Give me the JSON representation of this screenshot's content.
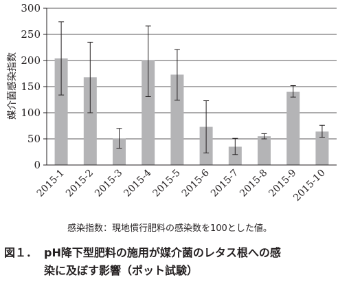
{
  "chart_data": {
    "type": "bar",
    "categories": [
      "2015-1",
      "2015-2",
      "2015-3",
      "2015-4",
      "2015-5",
      "2015-6",
      "2015-7",
      "2015-8",
      "2015-9",
      "2015-10"
    ],
    "values": [
      204,
      168,
      51,
      201,
      173,
      73,
      35,
      55,
      140,
      64
    ],
    "error_low": [
      134,
      100,
      32,
      131,
      124,
      23,
      20,
      50,
      130,
      53
    ],
    "error_high": [
      274,
      235,
      70,
      266,
      221,
      123,
      51,
      60,
      152,
      76
    ],
    "ylabel": "媒介菌感染指数",
    "ylim": [
      0,
      300
    ],
    "yticks": [
      0,
      50,
      100,
      150,
      200,
      250,
      300
    ],
    "grid": true,
    "bar_color": "#b4b4b6"
  },
  "note": "感染指数：現地慣行肥料の感染数を100とした値。",
  "caption": {
    "number": "図１．",
    "line1": "pH降下型肥料の施用が媒介菌のレタス根への感",
    "line2": "染に及ぼす影響（ポット試験）"
  }
}
